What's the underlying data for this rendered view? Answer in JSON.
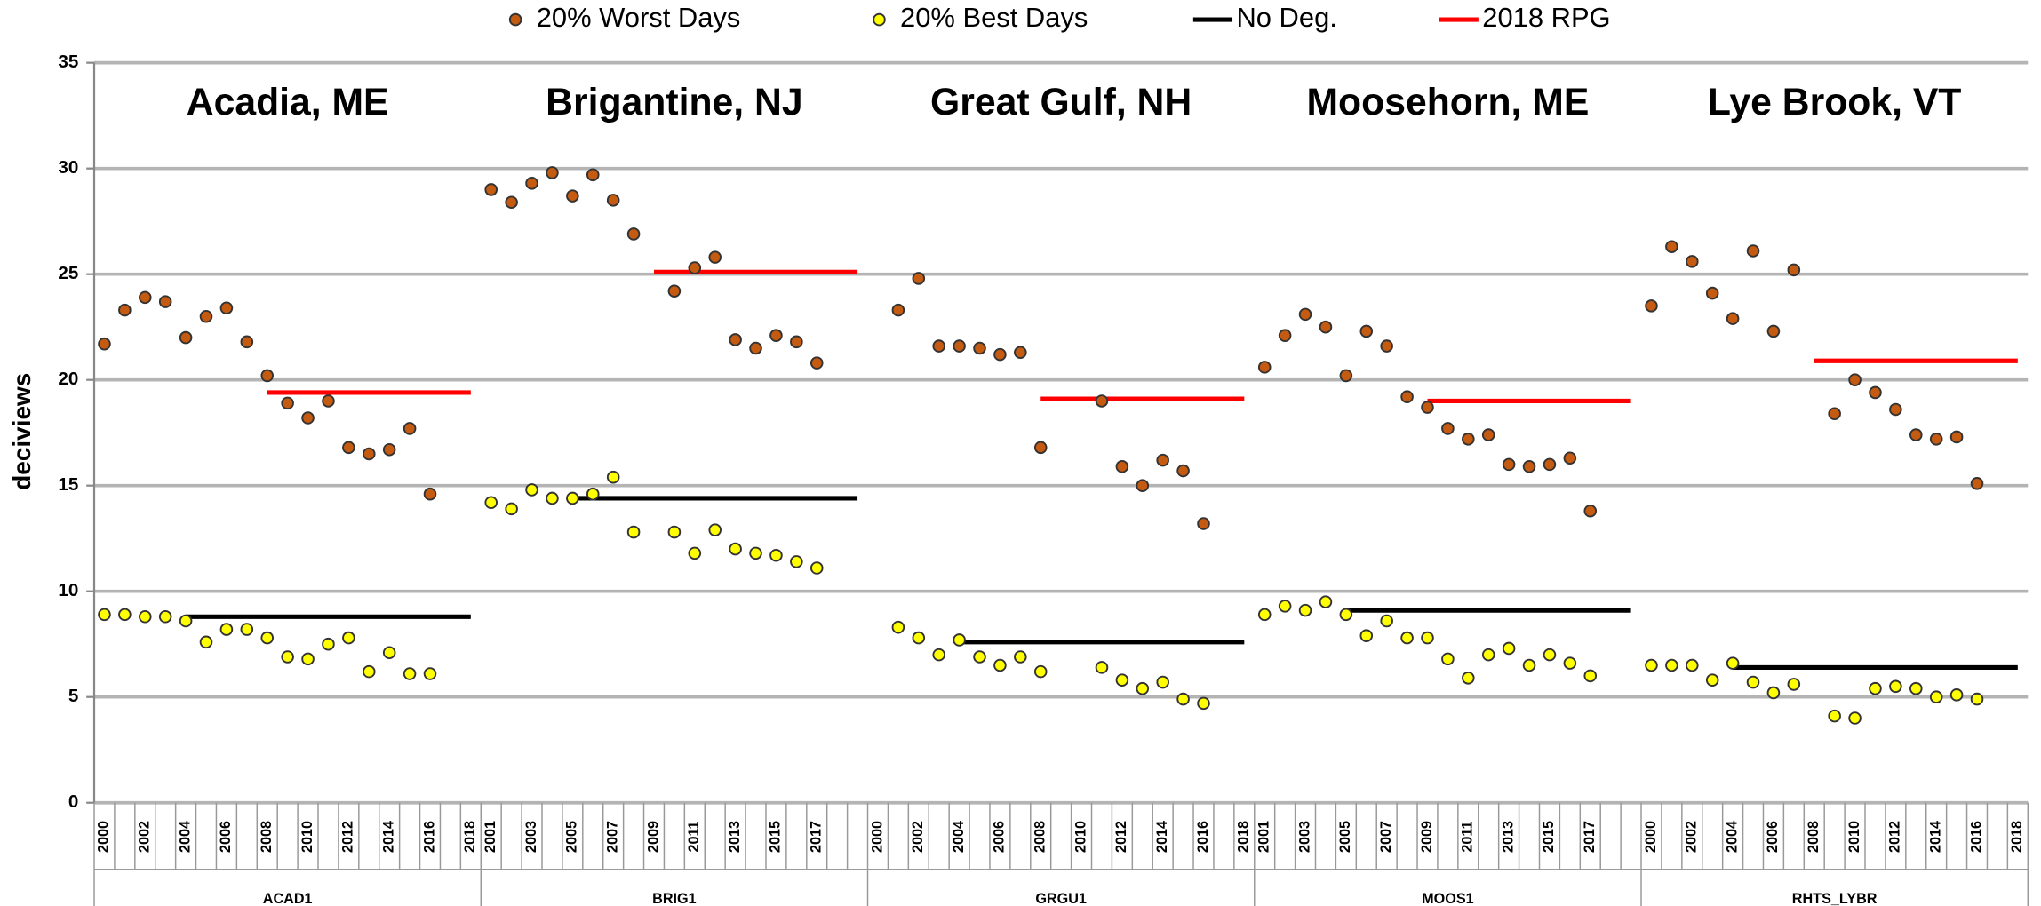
{
  "chart_data": {
    "type": "scatter",
    "ylabel": "deciviews",
    "ylim": [
      0,
      35
    ],
    "yticks": [
      0,
      5,
      10,
      15,
      20,
      25,
      30,
      35
    ],
    "grid": true,
    "legend": "top",
    "groups": [
      {
        "label": "ACAD1",
        "title": "Acadia, ME"
      },
      {
        "label": "BRIG1",
        "title": "Brigantine, NJ"
      },
      {
        "label": "GRGU1",
        "title": "Great Gulf, NH"
      },
      {
        "label": "MOOS1",
        "title": "Moosehorn, ME"
      },
      {
        "label": "RHTS_LYBR",
        "title": "Lye Brook, VT"
      }
    ],
    "categories": [
      "2000",
      null,
      "2002",
      null,
      "2004",
      null,
      "2006",
      null,
      "2008",
      null,
      "2010",
      null,
      "2012",
      null,
      "2014",
      null,
      "2016",
      null,
      "2018",
      "2001",
      null,
      "2003",
      null,
      "2005",
      null,
      "2007",
      null,
      "2009",
      null,
      "2011",
      null,
      "2013",
      null,
      "2015",
      null,
      "2017",
      null,
      null,
      "2000",
      null,
      "2002",
      null,
      "2004",
      null,
      "2006",
      null,
      "2008",
      null,
      "2010",
      null,
      "2012",
      null,
      "2014",
      null,
      "2016",
      null,
      "2018",
      "2001",
      null,
      "2003",
      null,
      "2005",
      null,
      "2007",
      null,
      "2009",
      null,
      "2011",
      null,
      "2013",
      null,
      "2015",
      null,
      "2017",
      null,
      null,
      "2000",
      null,
      "2002",
      null,
      "2004",
      null,
      "2006",
      null,
      "2008",
      null,
      "2010",
      null,
      "2012",
      null,
      "2014",
      null,
      "2016",
      null,
      "2018"
    ],
    "series": [
      {
        "name": "20% Worst Days",
        "type": "scatter",
        "color": "#c55a11",
        "values": [
          21.7,
          23.3,
          23.9,
          23.7,
          22.0,
          23.0,
          23.4,
          21.8,
          20.2,
          18.9,
          18.2,
          19.0,
          16.8,
          16.5,
          16.7,
          17.7,
          14.6,
          null,
          null,
          29.0,
          28.4,
          29.3,
          29.8,
          28.7,
          29.7,
          28.5,
          26.9,
          null,
          24.2,
          25.3,
          25.8,
          21.9,
          21.5,
          22.1,
          21.8,
          20.8,
          null,
          null,
          null,
          23.3,
          24.8,
          21.6,
          21.6,
          21.5,
          21.2,
          21.3,
          16.8,
          null,
          null,
          19.0,
          15.9,
          15.0,
          16.2,
          15.7,
          13.2,
          null,
          null,
          20.6,
          22.1,
          23.1,
          22.5,
          20.2,
          22.3,
          21.6,
          19.2,
          18.7,
          17.7,
          17.2,
          17.4,
          16.0,
          15.9,
          16.0,
          16.3,
          13.8,
          null,
          null,
          23.5,
          26.3,
          25.6,
          24.1,
          22.9,
          26.1,
          22.3,
          25.2,
          null,
          18.4,
          20.0,
          19.4,
          18.6,
          17.4,
          17.2,
          17.3,
          15.1,
          null,
          null
        ]
      },
      {
        "name": "20% Best Days",
        "type": "scatter",
        "color": "#ffff00",
        "values": [
          8.9,
          8.9,
          8.8,
          8.8,
          8.6,
          7.6,
          8.2,
          8.2,
          7.8,
          6.9,
          6.8,
          7.5,
          7.8,
          6.2,
          7.1,
          6.1,
          6.1,
          null,
          null,
          14.2,
          13.9,
          14.8,
          14.4,
          14.4,
          14.6,
          15.4,
          12.8,
          null,
          12.8,
          11.8,
          12.9,
          12.0,
          11.8,
          11.7,
          11.4,
          11.1,
          null,
          null,
          null,
          8.3,
          7.8,
          7.0,
          7.7,
          6.9,
          6.5,
          6.9,
          6.2,
          null,
          null,
          6.4,
          5.8,
          5.4,
          5.7,
          4.9,
          4.7,
          null,
          null,
          8.9,
          9.3,
          9.1,
          9.5,
          8.9,
          7.9,
          8.6,
          7.8,
          7.8,
          6.8,
          5.9,
          7.0,
          7.3,
          6.5,
          7.0,
          6.6,
          6.0,
          null,
          null,
          6.5,
          6.5,
          6.5,
          5.8,
          6.6,
          5.7,
          5.2,
          5.6,
          null,
          4.1,
          4.0,
          5.4,
          5.5,
          5.4,
          5.0,
          5.1,
          4.9,
          null,
          null
        ]
      },
      {
        "name": "No Deg.",
        "type": "line",
        "color": "#000000",
        "values": [
          null,
          null,
          null,
          null,
          8.8,
          8.8,
          8.8,
          8.8,
          8.8,
          8.8,
          8.8,
          8.8,
          8.8,
          8.8,
          8.8,
          8.8,
          8.8,
          8.8,
          8.8,
          null,
          null,
          null,
          null,
          14.4,
          14.4,
          14.4,
          14.4,
          14.4,
          14.4,
          14.4,
          14.4,
          14.4,
          14.4,
          14.4,
          14.4,
          14.4,
          14.4,
          14.4,
          null,
          null,
          null,
          null,
          7.6,
          7.6,
          7.6,
          7.6,
          7.6,
          7.6,
          7.6,
          7.6,
          7.6,
          7.6,
          7.6,
          7.6,
          7.6,
          7.6,
          7.6,
          null,
          null,
          null,
          null,
          9.1,
          9.1,
          9.1,
          9.1,
          9.1,
          9.1,
          9.1,
          9.1,
          9.1,
          9.1,
          9.1,
          9.1,
          9.1,
          9.1,
          9.1,
          null,
          null,
          null,
          null,
          6.4,
          6.4,
          6.4,
          6.4,
          6.4,
          6.4,
          6.4,
          6.4,
          6.4,
          6.4,
          6.4,
          6.4,
          6.4,
          6.4,
          6.4
        ]
      },
      {
        "name": "2018 RPG",
        "type": "line",
        "color": "#ff0000",
        "values": [
          null,
          null,
          null,
          null,
          null,
          null,
          null,
          null,
          19.4,
          19.4,
          19.4,
          19.4,
          19.4,
          19.4,
          19.4,
          19.4,
          19.4,
          19.4,
          19.4,
          null,
          null,
          null,
          null,
          null,
          null,
          null,
          null,
          25.1,
          25.1,
          25.1,
          25.1,
          25.1,
          25.1,
          25.1,
          25.1,
          25.1,
          25.1,
          25.1,
          null,
          null,
          null,
          null,
          null,
          null,
          null,
          null,
          19.1,
          19.1,
          19.1,
          19.1,
          19.1,
          19.1,
          19.1,
          19.1,
          19.1,
          19.1,
          19.1,
          null,
          null,
          null,
          null,
          null,
          null,
          null,
          null,
          19.0,
          19.0,
          19.0,
          19.0,
          19.0,
          19.0,
          19.0,
          19.0,
          19.0,
          19.0,
          19.0,
          null,
          null,
          null,
          null,
          null,
          null,
          null,
          null,
          20.9,
          20.9,
          20.9,
          20.9,
          20.9,
          20.9,
          20.9,
          20.9,
          20.9,
          20.9,
          20.9
        ]
      }
    ]
  }
}
